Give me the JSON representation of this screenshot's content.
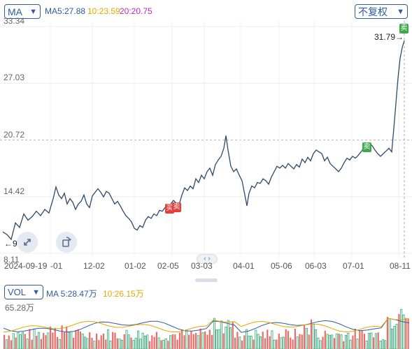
{
  "toolbar": {
    "ma_label": "MA",
    "ma5": "MA5:27.88",
    "ma10": "10:23.59",
    "ma20": "20:20.75",
    "fq_label": "不复权"
  },
  "price": {
    "yticks": [
      "33.34",
      "27.03",
      "20.72",
      "14.42",
      "8.11"
    ],
    "ymin": 8.11,
    "ymax": 33.34,
    "high_label": "31.79→",
    "low_label": "←9.66",
    "marks": [
      {
        "text": "买",
        "color": "#e5403d",
        "date": "01-30",
        "price": 13.6
      },
      {
        "text": "卖",
        "color": "#e5403d",
        "date": "01-31",
        "price": 13.8
      },
      {
        "text": "卖",
        "color": "#3da94b",
        "date": "07-28",
        "price": 20.6
      },
      {
        "text": "卖",
        "color": "#3da94b",
        "date": "08-12",
        "price": 33.0
      }
    ]
  },
  "xaxis": {
    "labels": [
      "2024-09-19",
      "-01",
      "12-02",
      "01-02",
      "02-05",
      "03-03",
      "04-01",
      "05-06",
      "06-03",
      "07-01",
      "08-11"
    ]
  },
  "volume": {
    "vol_label": "VOL",
    "ma5": "MA 5:28.47万",
    "ma10": "10:26.15万",
    "max_label": "65.28万"
  },
  "colors": {
    "price_line": "#2c4a6b",
    "ma_blue": "#2f5aa6",
    "ma10_yellow": "#e6a600",
    "ma20_purple": "#c026c8",
    "up": "#e5534b",
    "down": "#2fa673"
  },
  "icons": {
    "left_button": "diagonal-arrows-icon",
    "right_button": "rotate-icon"
  }
}
